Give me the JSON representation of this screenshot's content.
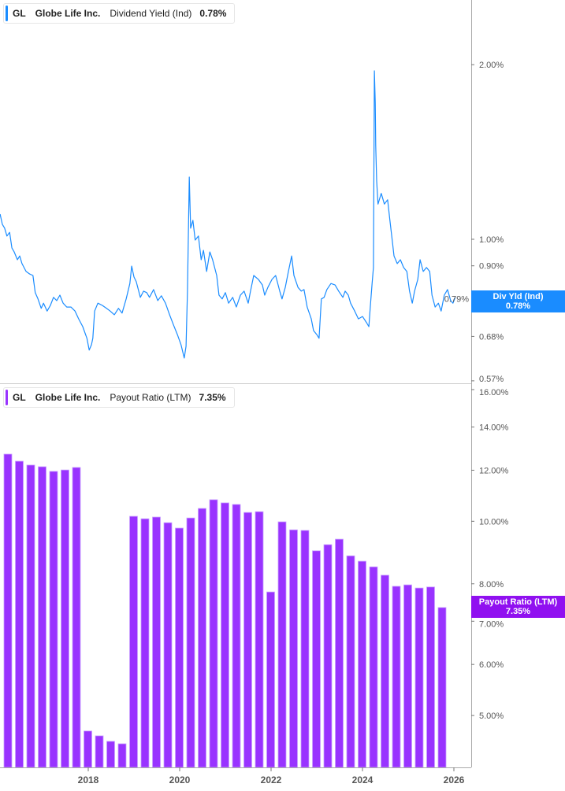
{
  "colors": {
    "yield": "#1a8cff",
    "payout": "#9933ff",
    "axis": "#aaaaaa",
    "label": "#555555"
  },
  "top_legend": {
    "ticker": "GL",
    "company": "Globe Life Inc.",
    "metric": "Dividend Yield (Ind)",
    "value": "0.78%"
  },
  "bottom_legend": {
    "ticker": "GL",
    "company": "Globe Life Inc.",
    "metric": "Payout Ratio (LTM)",
    "value": "7.35%"
  },
  "top_badge": {
    "label": "Div Yld (Ind)",
    "value": "0.78%"
  },
  "bottom_badge": {
    "label": "Payout Ratio (LTM)",
    "value": "7.35%"
  },
  "chart_data": [
    {
      "type": "line",
      "title": "",
      "series": [
        {
          "name": "Dividend Yield (Ind)",
          "points": [
            [
              2016.07,
              1.105
            ],
            [
              2016.12,
              1.061
            ],
            [
              2016.17,
              1.045
            ],
            [
              2016.22,
              1.013
            ],
            [
              2016.28,
              1.028
            ],
            [
              2016.33,
              0.966
            ],
            [
              2016.38,
              0.951
            ],
            [
              2016.45,
              0.922
            ],
            [
              2016.5,
              0.936
            ],
            [
              2016.55,
              0.908
            ],
            [
              2016.64,
              0.88
            ],
            [
              2016.72,
              0.871
            ],
            [
              2016.79,
              0.866
            ],
            [
              2016.84,
              0.809
            ],
            [
              2016.9,
              0.789
            ],
            [
              2016.97,
              0.76
            ],
            [
              2017.02,
              0.776
            ],
            [
              2017.1,
              0.752
            ],
            [
              2017.17,
              0.769
            ],
            [
              2017.24,
              0.794
            ],
            [
              2017.31,
              0.784
            ],
            [
              2017.38,
              0.801
            ],
            [
              2017.45,
              0.776
            ],
            [
              2017.53,
              0.764
            ],
            [
              2017.62,
              0.764
            ],
            [
              2017.71,
              0.752
            ],
            [
              2017.79,
              0.729
            ],
            [
              2017.88,
              0.707
            ],
            [
              2017.97,
              0.675
            ],
            [
              2018.02,
              0.644
            ],
            [
              2018.07,
              0.658
            ],
            [
              2018.1,
              0.675
            ],
            [
              2018.14,
              0.752
            ],
            [
              2018.21,
              0.776
            ],
            [
              2018.31,
              0.769
            ],
            [
              2018.4,
              0.76
            ],
            [
              2018.48,
              0.752
            ],
            [
              2018.57,
              0.741
            ],
            [
              2018.66,
              0.76
            ],
            [
              2018.74,
              0.746
            ],
            [
              2018.83,
              0.789
            ],
            [
              2018.91,
              0.839
            ],
            [
              2018.95,
              0.899
            ],
            [
              2019.0,
              0.861
            ],
            [
              2019.05,
              0.845
            ],
            [
              2019.14,
              0.794
            ],
            [
              2019.21,
              0.814
            ],
            [
              2019.28,
              0.809
            ],
            [
              2019.34,
              0.794
            ],
            [
              2019.43,
              0.819
            ],
            [
              2019.52,
              0.784
            ],
            [
              2019.6,
              0.799
            ],
            [
              2019.69,
              0.776
            ],
            [
              2019.78,
              0.741
            ],
            [
              2019.86,
              0.713
            ],
            [
              2019.95,
              0.685
            ],
            [
              2020.03,
              0.658
            ],
            [
              2020.1,
              0.624
            ],
            [
              2020.14,
              0.654
            ],
            [
              2020.17,
              0.814
            ],
            [
              2020.21,
              1.28
            ],
            [
              2020.24,
              1.045
            ],
            [
              2020.29,
              1.078
            ],
            [
              2020.34,
              0.997
            ],
            [
              2020.41,
              1.013
            ],
            [
              2020.47,
              0.922
            ],
            [
              2020.52,
              0.957
            ],
            [
              2020.59,
              0.88
            ],
            [
              2020.66,
              0.951
            ],
            [
              2020.72,
              0.922
            ],
            [
              2020.81,
              0.866
            ],
            [
              2020.86,
              0.801
            ],
            [
              2020.93,
              0.789
            ],
            [
              2021.0,
              0.809
            ],
            [
              2021.07,
              0.776
            ],
            [
              2021.16,
              0.794
            ],
            [
              2021.24,
              0.764
            ],
            [
              2021.33,
              0.801
            ],
            [
              2021.41,
              0.814
            ],
            [
              2021.5,
              0.776
            ],
            [
              2021.55,
              0.814
            ],
            [
              2021.62,
              0.866
            ],
            [
              2021.72,
              0.853
            ],
            [
              2021.81,
              0.834
            ],
            [
              2021.86,
              0.801
            ],
            [
              2021.93,
              0.826
            ],
            [
              2022.02,
              0.853
            ],
            [
              2022.1,
              0.866
            ],
            [
              2022.19,
              0.814
            ],
            [
              2022.24,
              0.789
            ],
            [
              2022.31,
              0.826
            ],
            [
              2022.38,
              0.88
            ],
            [
              2022.45,
              0.936
            ],
            [
              2022.5,
              0.866
            ],
            [
              2022.59,
              0.826
            ],
            [
              2022.66,
              0.814
            ],
            [
              2022.72,
              0.819
            ],
            [
              2022.79,
              0.764
            ],
            [
              2022.88,
              0.729
            ],
            [
              2022.93,
              0.696
            ],
            [
              2023.0,
              0.685
            ],
            [
              2023.05,
              0.675
            ],
            [
              2023.1,
              0.789
            ],
            [
              2023.16,
              0.794
            ],
            [
              2023.22,
              0.819
            ],
            [
              2023.31,
              0.839
            ],
            [
              2023.4,
              0.834
            ],
            [
              2023.48,
              0.814
            ],
            [
              2023.57,
              0.794
            ],
            [
              2023.62,
              0.814
            ],
            [
              2023.69,
              0.801
            ],
            [
              2023.74,
              0.776
            ],
            [
              2023.83,
              0.752
            ],
            [
              2023.91,
              0.729
            ],
            [
              2024.0,
              0.736
            ],
            [
              2024.09,
              0.718
            ],
            [
              2024.14,
              0.707
            ],
            [
              2024.17,
              0.764
            ],
            [
              2024.21,
              0.839
            ],
            [
              2024.24,
              0.894
            ],
            [
              2024.26,
              1.952
            ],
            [
              2024.28,
              1.72
            ],
            [
              2024.29,
              1.45
            ],
            [
              2024.31,
              1.26
            ],
            [
              2024.34,
              1.15
            ],
            [
              2024.41,
              1.2
            ],
            [
              2024.48,
              1.15
            ],
            [
              2024.55,
              1.17
            ],
            [
              2024.6,
              1.078
            ],
            [
              2024.66,
              0.981
            ],
            [
              2024.69,
              0.936
            ],
            [
              2024.76,
              0.908
            ],
            [
              2024.83,
              0.922
            ],
            [
              2024.9,
              0.894
            ],
            [
              2024.97,
              0.88
            ],
            [
              2025.03,
              0.814
            ],
            [
              2025.09,
              0.776
            ],
            [
              2025.14,
              0.814
            ],
            [
              2025.21,
              0.853
            ],
            [
              2025.26,
              0.922
            ],
            [
              2025.33,
              0.88
            ],
            [
              2025.4,
              0.894
            ],
            [
              2025.47,
              0.88
            ],
            [
              2025.52,
              0.801
            ],
            [
              2025.59,
              0.764
            ],
            [
              2025.66,
              0.776
            ],
            [
              2025.72,
              0.752
            ],
            [
              2025.79,
              0.801
            ],
            [
              2025.86,
              0.819
            ],
            [
              2025.93,
              0.784
            ],
            [
              2025.98,
              0.776
            ],
            [
              2026.03,
              0.794
            ]
          ]
        }
      ],
      "y_scale": "log",
      "ylim": [
        0.57,
        2.1
      ],
      "y_ticks": [
        "2.00%",
        "1.00%",
        "0.90%",
        "0.79%",
        "0.68%",
        "0.57%"
      ],
      "y_tick_values": [
        2.0,
        1.0,
        0.9,
        0.79,
        0.68,
        0.57
      ],
      "grid": false,
      "legend": "top-left"
    },
    {
      "type": "bar",
      "title": "",
      "categories": [
        "2016-Q1",
        "2016-Q2",
        "2016-Q3",
        "2016-Q4",
        "2017-Q1",
        "2017-Q2",
        "2017-Q3",
        "2017-Q4",
        "2018-Q1",
        "2018-Q2",
        "2018-Q3",
        "2018-Q4",
        "2019-Q1",
        "2019-Q2",
        "2019-Q3",
        "2019-Q4",
        "2020-Q1",
        "2020-Q2",
        "2020-Q3",
        "2020-Q4",
        "2021-Q1",
        "2021-Q2",
        "2021-Q3",
        "2021-Q4",
        "2022-Q1",
        "2022-Q2",
        "2022-Q3",
        "2022-Q4",
        "2023-Q1",
        "2023-Q2",
        "2023-Q3",
        "2023-Q4",
        "2024-Q1",
        "2024-Q2",
        "2024-Q3",
        "2024-Q4",
        "2025-Q1",
        "2025-Q2",
        "2025-Q3"
      ],
      "series": [
        {
          "name": "Payout Ratio (LTM)",
          "values": [
            12.71,
            12.39,
            12.22,
            12.15,
            11.95,
            12.01,
            12.12,
            4.73,
            4.65,
            4.56,
            4.52,
            10.18,
            10.09,
            10.15,
            9.95,
            9.76,
            10.12,
            10.47,
            10.8,
            10.68,
            10.62,
            10.32,
            10.35,
            7.77,
            9.98,
            9.7,
            9.68,
            9.0,
            9.2,
            9.38,
            8.84,
            8.67,
            8.5,
            8.25,
            7.93,
            7.97,
            7.88,
            7.91,
            7.35
          ]
        }
      ],
      "y_scale": "log",
      "ylim": [
        4.3,
        16.0
      ],
      "y_ticks": [
        "16.00%",
        "14.00%",
        "12.00%",
        "10.00%",
        "8.00%",
        "7.00%",
        "6.00%",
        "5.00%"
      ],
      "y_tick_values": [
        16,
        14,
        12,
        10,
        8,
        7,
        6,
        5
      ],
      "x_ticks": [
        "2018",
        "2020",
        "2022",
        "2024",
        "2026"
      ],
      "x_tick_values": [
        2018,
        2020,
        2022,
        2024,
        2026
      ],
      "grid": false,
      "legend": "top-left"
    }
  ]
}
